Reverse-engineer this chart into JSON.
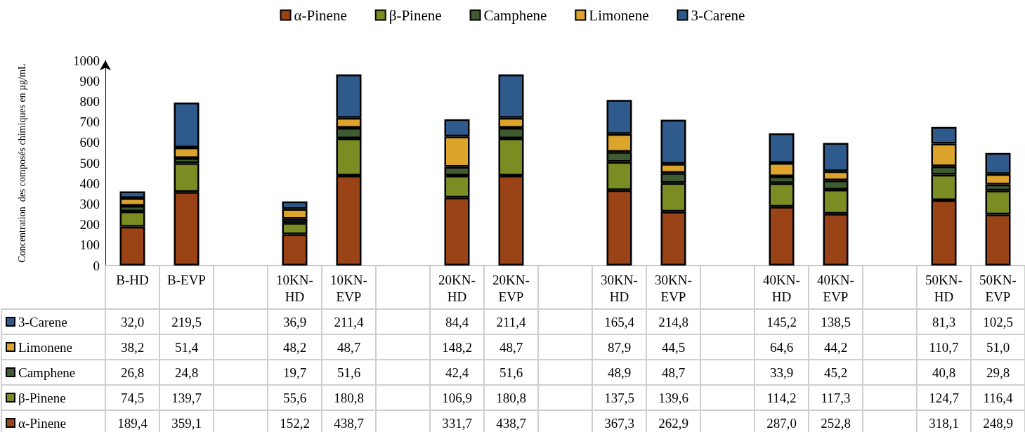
{
  "chart_data": {
    "type": "bar",
    "stacked": true,
    "ylabel": "Concentration  des composés chimiques en µg/mL",
    "legend": "top",
    "grid": false,
    "categories": [
      "B-HD",
      "B-EVP",
      null,
      "10KN-HD",
      "10KN-EVP",
      null,
      "20KN-HD",
      "20KN-EVP",
      null,
      "30KN-HD",
      "30KN-EVP",
      null,
      "40KN-HD",
      "40KN-EVP",
      null,
      "50KN-HD",
      "50KN-EVP"
    ],
    "ylim": [
      0,
      1000
    ],
    "yticks": [
      0,
      100,
      200,
      300,
      400,
      500,
      600,
      700,
      800,
      900,
      1000
    ],
    "series": [
      {
        "name": "α-Pinene",
        "color": "#9a4316",
        "values": [
          189.4,
          359.1,
          null,
          152.2,
          438.7,
          null,
          331.7,
          438.7,
          null,
          367.3,
          262.9,
          null,
          287.0,
          252.8,
          null,
          318.1,
          248.9
        ],
        "value_labels": [
          "189,4",
          "359,1",
          null,
          "152,2",
          "438,7",
          null,
          "331,7",
          "438,7",
          null,
          "367,3",
          "262,9",
          null,
          "287,0",
          "252,8",
          null,
          "318,1",
          "248,9"
        ]
      },
      {
        "name": "β-Pinene",
        "color": "#7b8c23",
        "values": [
          74.5,
          139.7,
          null,
          55.6,
          180.8,
          null,
          106.9,
          180.8,
          null,
          137.5,
          139.6,
          null,
          114.2,
          117.3,
          null,
          124.7,
          116.4
        ],
        "value_labels": [
          "74,5",
          "139,7",
          null,
          "55,6",
          "180,8",
          null,
          "106,9",
          "180,8",
          null,
          "137,5",
          "139,6",
          null,
          "114,2",
          "117,3",
          null,
          "124,7",
          "116,4"
        ]
      },
      {
        "name": "Camphene",
        "color": "#3e5b32",
        "values": [
          26.8,
          24.8,
          null,
          19.7,
          51.6,
          null,
          42.4,
          51.6,
          null,
          48.9,
          48.7,
          null,
          33.9,
          45.2,
          null,
          40.8,
          29.8
        ],
        "value_labels": [
          "26,8",
          "24,8",
          null,
          "19,7",
          "51,6",
          null,
          "42,4",
          "51,6",
          null,
          "48,9",
          "48,7",
          null,
          "33,9",
          "45,2",
          null,
          "40,8",
          "29,8"
        ]
      },
      {
        "name": "Limonene",
        "color": "#dca42a",
        "values": [
          38.2,
          51.4,
          null,
          48.2,
          48.7,
          null,
          148.2,
          48.7,
          null,
          87.9,
          44.5,
          null,
          64.6,
          44.2,
          null,
          110.7,
          51.0
        ],
        "value_labels": [
          "38,2",
          "51,4",
          null,
          "48,2",
          "48,7",
          null,
          "148,2",
          "48,7",
          null,
          "87,9",
          "44,5",
          null,
          "64,6",
          "44,2",
          null,
          "110,7",
          "51,0"
        ]
      },
      {
        "name": "3-Carene",
        "color": "#2f5a8c",
        "values": [
          32.0,
          219.5,
          null,
          36.9,
          211.4,
          null,
          84.4,
          211.4,
          null,
          165.4,
          214.8,
          null,
          145.2,
          138.5,
          null,
          81.3,
          102.5
        ],
        "value_labels": [
          "32,0",
          "219,5",
          null,
          "36,9",
          "211,4",
          null,
          "84,4",
          "211,4",
          null,
          "165,4",
          "214,8",
          null,
          "145,2",
          "138,5",
          null,
          "81,3",
          "102,5"
        ]
      }
    ]
  }
}
